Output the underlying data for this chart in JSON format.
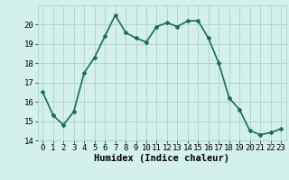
{
  "x": [
    0,
    1,
    2,
    3,
    4,
    5,
    6,
    7,
    8,
    9,
    10,
    11,
    12,
    13,
    14,
    15,
    16,
    17,
    18,
    19,
    20,
    21,
    22,
    23
  ],
  "y": [
    16.5,
    15.3,
    14.8,
    15.5,
    17.5,
    18.3,
    19.4,
    20.5,
    19.6,
    19.3,
    19.1,
    19.9,
    20.1,
    19.9,
    20.2,
    20.2,
    19.3,
    18.0,
    16.2,
    15.6,
    14.5,
    14.3,
    14.4,
    14.6
  ],
  "line_color": "#1a6b5a",
  "marker": "D",
  "marker_size": 2.0,
  "bg_color": "#d4f0ec",
  "grid_color": "#aad4cc",
  "xlabel": "Humidex (Indice chaleur)",
  "ylim": [
    14,
    21
  ],
  "xlim": [
    -0.5,
    23.5
  ],
  "yticks": [
    14,
    15,
    16,
    17,
    18,
    19,
    20
  ],
  "xticks": [
    0,
    1,
    2,
    3,
    4,
    5,
    6,
    7,
    8,
    9,
    10,
    11,
    12,
    13,
    14,
    15,
    16,
    17,
    18,
    19,
    20,
    21,
    22,
    23
  ],
  "xlabel_fontsize": 7.5,
  "tick_fontsize": 6.5,
  "line_width": 1.2
}
